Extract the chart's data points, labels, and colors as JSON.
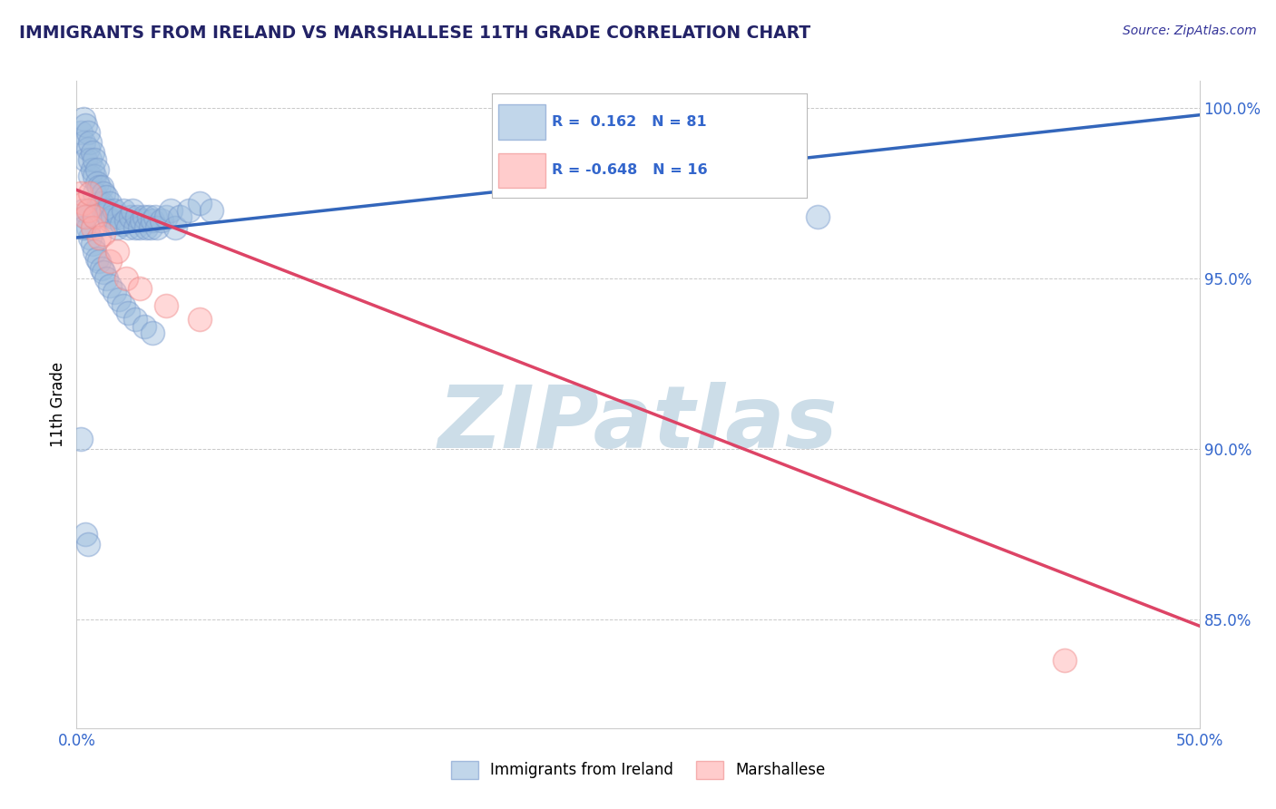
{
  "title": "IMMIGRANTS FROM IRELAND VS MARSHALLESE 11TH GRADE CORRELATION CHART",
  "source_text": "Source: ZipAtlas.com",
  "ylabel": "11th Grade",
  "xmin": 0.0,
  "xmax": 0.5,
  "ymin": 0.818,
  "ymax": 1.008,
  "ylabel_tick_vals": [
    0.85,
    0.9,
    0.95,
    1.0
  ],
  "xtick_vals": [
    0.0,
    0.5
  ],
  "blue_color": "#99BBDD",
  "pink_color": "#FFAAAA",
  "blue_edge_color": "#7799CC",
  "pink_edge_color": "#EE8888",
  "blue_line_color": "#3366BB",
  "pink_line_color": "#DD4466",
  "watermark_text": "ZIPatlas",
  "watermark_color": "#CCDDE8",
  "title_color": "#222266",
  "source_color": "#333399",
  "tick_label_color": "#3366CC",
  "grid_color": "#BBBBBB",
  "background_color": "#FFFFFF",
  "blue_scatter_x": [
    0.002,
    0.003,
    0.003,
    0.004,
    0.004,
    0.005,
    0.005,
    0.006,
    0.006,
    0.006,
    0.007,
    0.007,
    0.008,
    0.008,
    0.008,
    0.009,
    0.009,
    0.01,
    0.01,
    0.011,
    0.011,
    0.012,
    0.012,
    0.013,
    0.013,
    0.014,
    0.015,
    0.015,
    0.016,
    0.017,
    0.018,
    0.019,
    0.02,
    0.021,
    0.022,
    0.023,
    0.024,
    0.025,
    0.026,
    0.027,
    0.028,
    0.029,
    0.03,
    0.031,
    0.032,
    0.033,
    0.034,
    0.035,
    0.036,
    0.038,
    0.04,
    0.042,
    0.044,
    0.046,
    0.05,
    0.055,
    0.06,
    0.003,
    0.004,
    0.005,
    0.006,
    0.007,
    0.008,
    0.009,
    0.01,
    0.011,
    0.012,
    0.013,
    0.015,
    0.017,
    0.019,
    0.021,
    0.023,
    0.026,
    0.03,
    0.034,
    0.002,
    0.003,
    0.004,
    0.005,
    0.33
  ],
  "blue_scatter_y": [
    0.993,
    0.997,
    0.99,
    0.995,
    0.985,
    0.993,
    0.988,
    0.99,
    0.985,
    0.98,
    0.987,
    0.982,
    0.985,
    0.98,
    0.975,
    0.982,
    0.978,
    0.977,
    0.972,
    0.977,
    0.972,
    0.975,
    0.97,
    0.974,
    0.969,
    0.97,
    0.972,
    0.967,
    0.968,
    0.97,
    0.965,
    0.968,
    0.966,
    0.97,
    0.967,
    0.965,
    0.968,
    0.97,
    0.965,
    0.968,
    0.965,
    0.967,
    0.968,
    0.965,
    0.968,
    0.965,
    0.967,
    0.968,
    0.965,
    0.967,
    0.968,
    0.97,
    0.965,
    0.968,
    0.97,
    0.972,
    0.97,
    0.97,
    0.968,
    0.965,
    0.962,
    0.96,
    0.958,
    0.956,
    0.955,
    0.953,
    0.952,
    0.95,
    0.948,
    0.946,
    0.944,
    0.942,
    0.94,
    0.938,
    0.936,
    0.934,
    0.903,
    0.965,
    0.875,
    0.872,
    0.968
  ],
  "pink_scatter_x": [
    0.002,
    0.003,
    0.004,
    0.005,
    0.006,
    0.007,
    0.008,
    0.01,
    0.012,
    0.015,
    0.018,
    0.022,
    0.028,
    0.04,
    0.055,
    0.44
  ],
  "pink_scatter_y": [
    0.975,
    0.972,
    0.968,
    0.97,
    0.975,
    0.965,
    0.968,
    0.962,
    0.963,
    0.955,
    0.958,
    0.95,
    0.947,
    0.942,
    0.938,
    0.838
  ],
  "blue_trend_x": [
    0.0,
    0.5
  ],
  "blue_trend_y": [
    0.962,
    0.998
  ],
  "pink_trend_x": [
    0.0,
    0.5
  ],
  "pink_trend_y": [
    0.976,
    0.848
  ]
}
